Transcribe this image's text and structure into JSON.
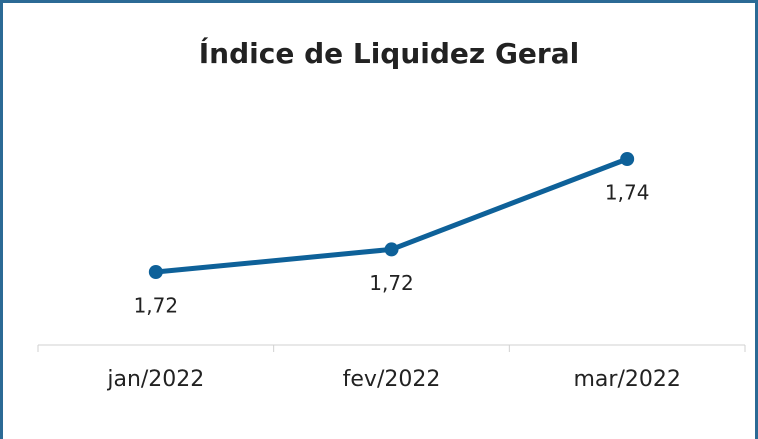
{
  "chart_data": {
    "type": "line",
    "title": "Índice de Liquidez Geral",
    "categories": [
      "jan/2022",
      "fev/2022",
      "mar/2022"
    ],
    "series": [
      {
        "name": "Índice de Liquidez Geral",
        "color": "#0e6199",
        "values": [
          1.716,
          1.721,
          1.741
        ],
        "value_labels": [
          "1,72",
          "1,72",
          "1,74"
        ]
      }
    ]
  }
}
